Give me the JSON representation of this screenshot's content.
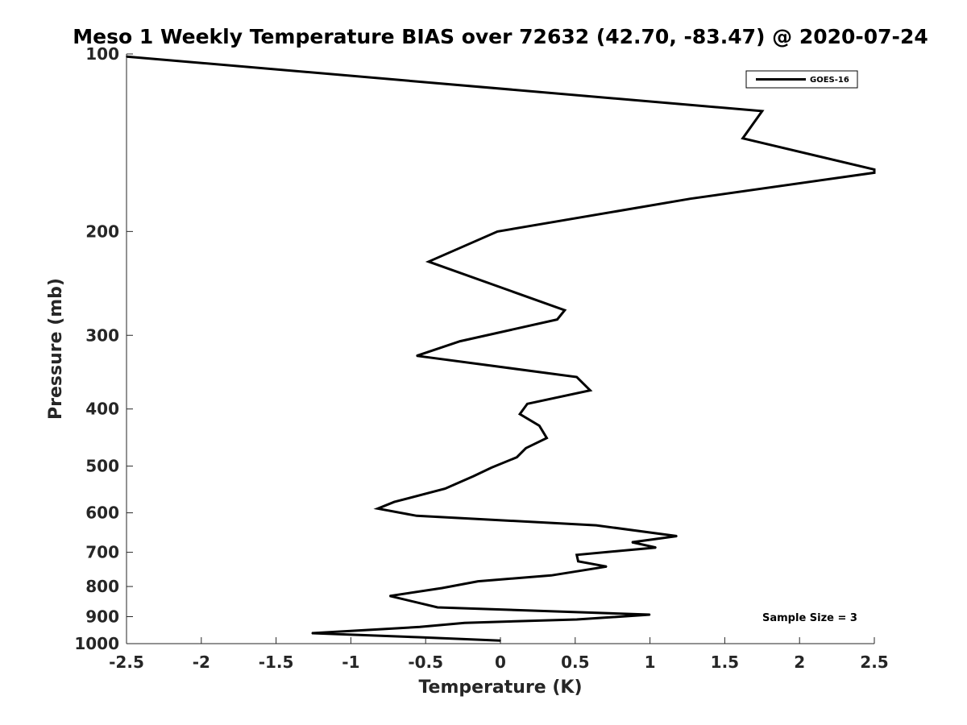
{
  "chart_data": {
    "type": "line",
    "title": "Meso 1 Weekly Temperature BIAS over 72632 (42.70, -83.47) @ 2020-07-24",
    "xlabel": "Temperature (K)",
    "ylabel": "Pressure (mb)",
    "xlim": [
      -2.5,
      2.5
    ],
    "ylim": [
      1000,
      100
    ],
    "y_scale": "log",
    "y_reversed": true,
    "grid": false,
    "legend_position": "top-right",
    "x_ticks": [
      -2.5,
      -2,
      -1.5,
      -1,
      -0.5,
      0,
      0.5,
      1,
      1.5,
      2,
      2.5
    ],
    "x_tick_labels": [
      "-2.5",
      "-2",
      "-1.5",
      "-1",
      "-0.5",
      "0",
      "0.5",
      "1",
      "1.5",
      "2",
      "2.5"
    ],
    "y_ticks": [
      100,
      200,
      300,
      400,
      500,
      600,
      700,
      800,
      900,
      1000
    ],
    "y_tick_labels": [
      "100",
      "200",
      "300",
      "400",
      "500",
      "600",
      "700",
      "800",
      "900",
      "1000"
    ],
    "annotation": "Sample Size = 3",
    "series": [
      {
        "name": "GOES-16",
        "color": "#000000",
        "points": [
          {
            "t": -2.5,
            "p": 101
          },
          {
            "t": 1.75,
            "p": 125
          },
          {
            "t": 1.62,
            "p": 139
          },
          {
            "t": 2.5,
            "p": 157
          },
          {
            "t": 2.5,
            "p": 159
          },
          {
            "t": 1.27,
            "p": 176
          },
          {
            "t": -0.02,
            "p": 200
          },
          {
            "t": -0.48,
            "p": 225
          },
          {
            "t": 0.43,
            "p": 272
          },
          {
            "t": 0.38,
            "p": 282
          },
          {
            "t": -0.27,
            "p": 307
          },
          {
            "t": -0.56,
            "p": 325
          },
          {
            "t": 0.51,
            "p": 353
          },
          {
            "t": 0.6,
            "p": 372
          },
          {
            "t": 0.18,
            "p": 392
          },
          {
            "t": 0.13,
            "p": 408
          },
          {
            "t": 0.26,
            "p": 427
          },
          {
            "t": 0.31,
            "p": 448
          },
          {
            "t": 0.17,
            "p": 466
          },
          {
            "t": 0.11,
            "p": 483
          },
          {
            "t": -0.06,
            "p": 503
          },
          {
            "t": -0.18,
            "p": 520
          },
          {
            "t": -0.37,
            "p": 546
          },
          {
            "t": -0.71,
            "p": 575
          },
          {
            "t": -0.82,
            "p": 590
          },
          {
            "t": -0.56,
            "p": 607
          },
          {
            "t": 0.64,
            "p": 630
          },
          {
            "t": 1.18,
            "p": 657
          },
          {
            "t": 0.88,
            "p": 673
          },
          {
            "t": 1.04,
            "p": 687
          },
          {
            "t": 0.51,
            "p": 707
          },
          {
            "t": 0.52,
            "p": 725
          },
          {
            "t": 0.71,
            "p": 740
          },
          {
            "t": 0.34,
            "p": 766
          },
          {
            "t": -0.15,
            "p": 784
          },
          {
            "t": -0.39,
            "p": 805
          },
          {
            "t": -0.74,
            "p": 830
          },
          {
            "t": -0.42,
            "p": 868
          },
          {
            "t": 1.0,
            "p": 893
          },
          {
            "t": 0.51,
            "p": 910
          },
          {
            "t": -0.24,
            "p": 922
          },
          {
            "t": -0.54,
            "p": 937
          },
          {
            "t": -1.26,
            "p": 960
          },
          {
            "t": -0.55,
            "p": 975
          },
          {
            "t": 0.0,
            "p": 988
          }
        ]
      }
    ]
  }
}
